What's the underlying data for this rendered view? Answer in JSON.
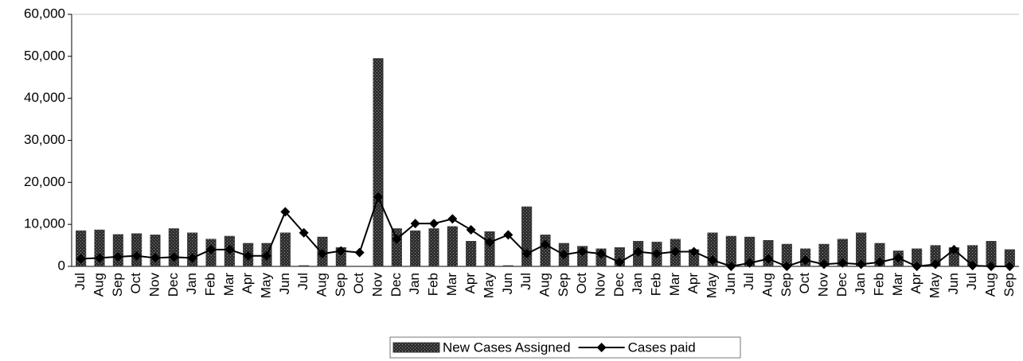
{
  "chart_data": {
    "type": "bar_line",
    "categories": [
      "Jul",
      "Aug",
      "Sep",
      "Oct",
      "Nov",
      "Dec",
      "Jan",
      "Feb",
      "Mar",
      "Apr",
      "May",
      "Jun",
      "Jul",
      "Aug",
      "Sep",
      "Oct",
      "Nov",
      "Dec",
      "Jan",
      "Feb",
      "Mar",
      "Apr",
      "May",
      "Jun",
      "Jul",
      "Aug",
      "Sep",
      "Oct",
      "Nov",
      "Dec",
      "Jan",
      "Feb",
      "Mar",
      "Apr",
      "May",
      "Jun",
      "Jul",
      "Aug",
      "Sep",
      "Oct",
      "Nov",
      "Dec",
      "Jan",
      "Feb",
      "Mar",
      "Apr",
      "May",
      "Jun",
      "Jul",
      "Aug",
      "Sep"
    ],
    "series": [
      {
        "name": "New Cases Assigned",
        "kind": "bar",
        "color": "#3a3a3a",
        "values": [
          8500,
          8700,
          7600,
          7800,
          7500,
          9000,
          8000,
          6500,
          7200,
          5500,
          5500,
          8000,
          200,
          7000,
          4500,
          0,
          49500,
          9000,
          8500,
          9000,
          9500,
          6000,
          8300,
          200,
          14200,
          7500,
          5500,
          4800,
          4200,
          4500,
          6000,
          5800,
          6500,
          4000,
          8000,
          7200,
          7000,
          6200,
          5300,
          4200,
          5300,
          6500,
          8000,
          5500,
          3700,
          4200,
          5000,
          4500,
          5000,
          6000,
          4000
        ]
      },
      {
        "name": "Cases paid",
        "kind": "line",
        "color": "#000000",
        "values": [
          1800,
          2000,
          2300,
          2500,
          2000,
          2200,
          2000,
          4000,
          4000,
          2500,
          2500,
          13000,
          8000,
          3000,
          3700,
          3300,
          16500,
          6500,
          10200,
          10200,
          11300,
          8700,
          5700,
          7500,
          3000,
          5200,
          2800,
          3500,
          3000,
          1000,
          3500,
          3000,
          3500,
          3500,
          1500,
          0,
          800,
          1800,
          0,
          1500,
          500,
          800,
          500,
          1000,
          2000,
          0,
          500,
          4000,
          200,
          0,
          0
        ]
      }
    ],
    "ylim": [
      0,
      60000
    ],
    "yticks": [
      0,
      {
        "value": 10000,
        "label": "10,000"
      },
      {
        "value": 20000,
        "label": "20,000"
      },
      {
        "value": 30000,
        "label": "30,000"
      },
      {
        "value": 40000,
        "label": "40,000"
      },
      {
        "value": 50000,
        "label": "50,000"
      },
      {
        "value": 60000,
        "label": "60,000"
      }
    ],
    "legend": "bottom"
  }
}
